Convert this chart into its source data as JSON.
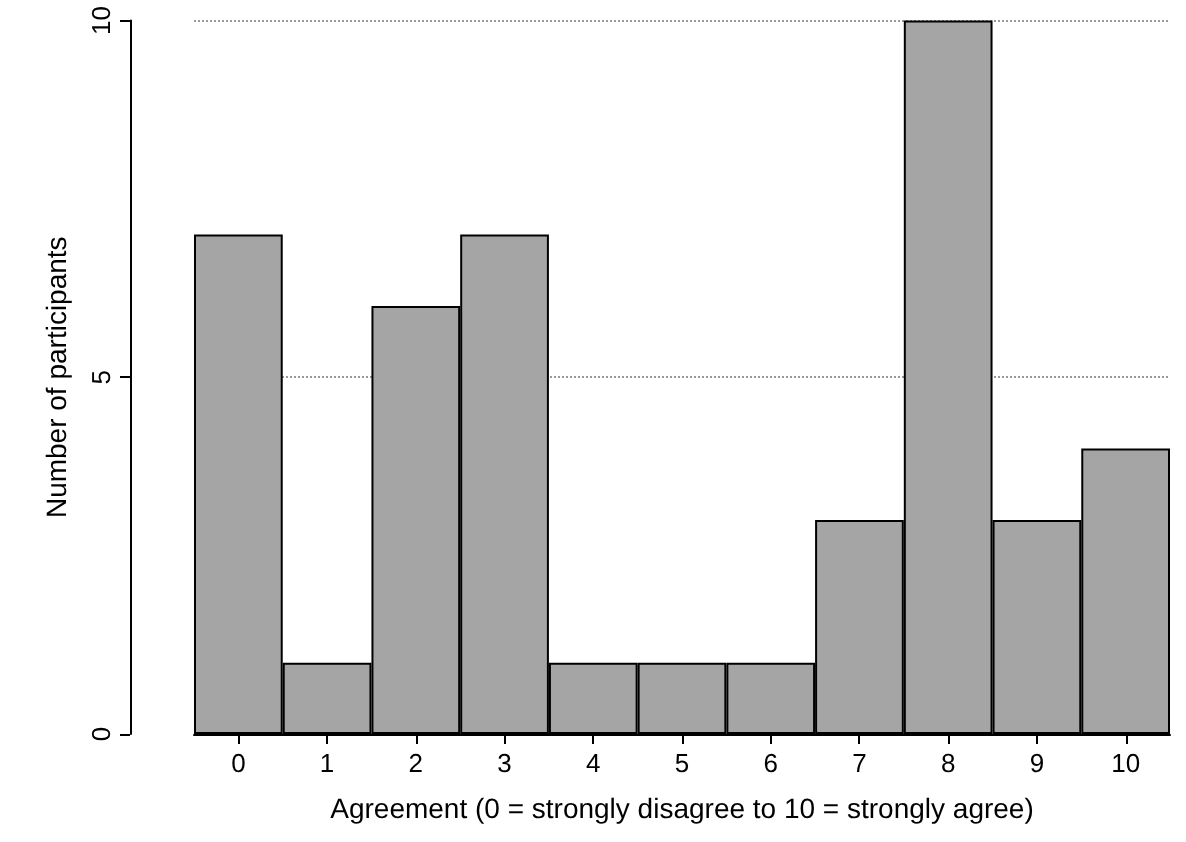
{
  "chart_data": {
    "type": "bar",
    "xlabel": "Agreement (0 = strongly disagree to 10 = strongly agree)",
    "ylabel": "Number of participants",
    "categories": [
      "0",
      "1",
      "2",
      "3",
      "4",
      "5",
      "6",
      "7",
      "8",
      "9",
      "10"
    ],
    "values": [
      7,
      1,
      6,
      7,
      1,
      1,
      1,
      3,
      10,
      3,
      4
    ],
    "color": "#a5a5a5",
    "ylim": [
      0,
      10
    ],
    "yticks": [
      0,
      5,
      10
    ],
    "grid": "y"
  }
}
